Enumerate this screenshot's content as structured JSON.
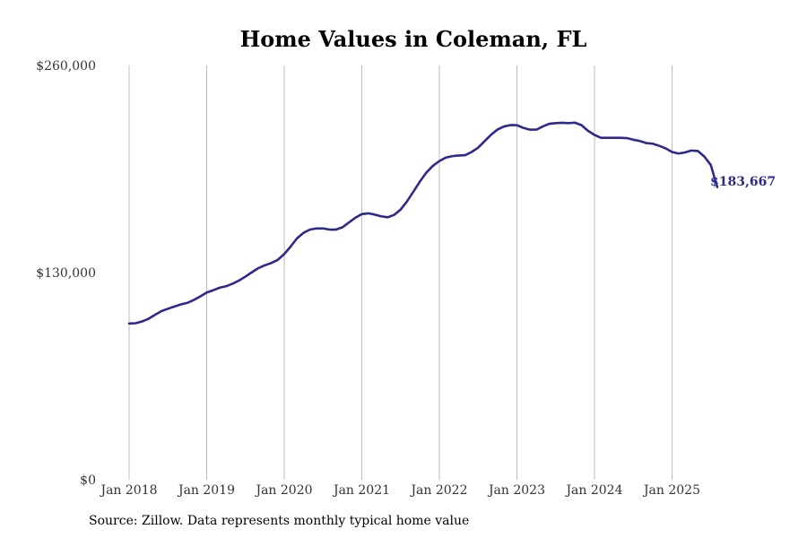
{
  "chart_data": {
    "type": "line",
    "title": "Home Values in Coleman, FL",
    "xlabel": "",
    "ylabel": "",
    "ylim": [
      0,
      260000
    ],
    "y_ticks": [
      {
        "value": 0,
        "label": "$0"
      },
      {
        "value": 130000,
        "label": "$130,000"
      },
      {
        "value": 260000,
        "label": "$260,000"
      }
    ],
    "x_ticks": [
      "Jan 2018",
      "Jan 2019",
      "Jan 2020",
      "Jan 2021",
      "Jan 2022",
      "Jan 2023",
      "Jan 2024",
      "Jan 2025"
    ],
    "grid": "vertical",
    "legend": "none",
    "series": [
      {
        "color": "#2e2a8c",
        "start": "2018-01",
        "end_label": "$183,667",
        "values": [
          98000,
          98200,
          99300,
          101000,
          103500,
          105800,
          107300,
          108700,
          110000,
          111000,
          112800,
          115000,
          117500,
          118900,
          120500,
          121400,
          123000,
          125000,
          127500,
          130200,
          132800,
          134600,
          136000,
          138000,
          141600,
          146400,
          151600,
          155000,
          157000,
          157700,
          157700,
          157000,
          157000,
          158400,
          161400,
          164400,
          166700,
          167200,
          166400,
          165300,
          164700,
          166200,
          169500,
          174700,
          180900,
          187200,
          192800,
          197000,
          200000,
          202200,
          203100,
          203500,
          203700,
          205700,
          208400,
          212500,
          216500,
          219800,
          221700,
          222600,
          222500,
          220800,
          219700,
          219700,
          221700,
          223400,
          223800,
          224000,
          223800,
          224100,
          222500,
          219000,
          216400,
          214600,
          214600,
          214600,
          214600,
          214400,
          213400,
          212600,
          211300,
          210900,
          209600,
          208000,
          205700,
          204700,
          205400,
          206600,
          206300,
          202800,
          197500,
          183667
        ]
      }
    ]
  },
  "source_note": "Source: Zillow. Data represents monthly typical home value"
}
